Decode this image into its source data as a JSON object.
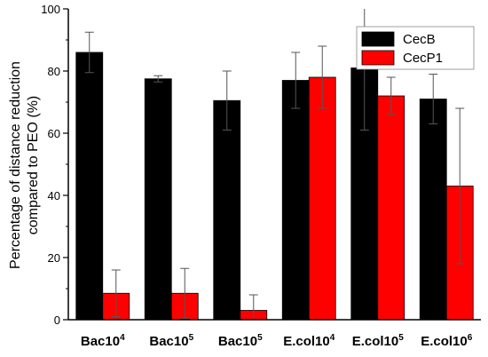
{
  "chart_data": {
    "type": "bar",
    "title": "",
    "xlabel": "",
    "ylabel_lines": [
      "Percentage of distance reduction",
      "compared to PEO (%)"
    ],
    "ylim": [
      0,
      100
    ],
    "yticks": [
      0,
      20,
      40,
      60,
      80,
      100
    ],
    "categories": [
      {
        "base": "Bac10",
        "sup": "4"
      },
      {
        "base": "Bac10",
        "sup": "5"
      },
      {
        "base": "Bac10",
        "sup": "5"
      },
      {
        "base": "E.col10",
        "sup": "4"
      },
      {
        "base": "E.col10",
        "sup": "5"
      },
      {
        "base": "E.col10",
        "sup": "6"
      }
    ],
    "series": [
      {
        "name": "CecB",
        "color": "#000000",
        "values": [
          86,
          77.5,
          70.5,
          77,
          81,
          71
        ],
        "errors": [
          6.5,
          1,
          9.5,
          9,
          20,
          8
        ]
      },
      {
        "name": "CecP1",
        "color": "#ff0000",
        "values": [
          8.5,
          8.5,
          3,
          78,
          72,
          43
        ],
        "errors": [
          7.5,
          8,
          5,
          10,
          6,
          25
        ]
      }
    ],
    "legend": {
      "placement": "top-right"
    },
    "grid": false
  }
}
